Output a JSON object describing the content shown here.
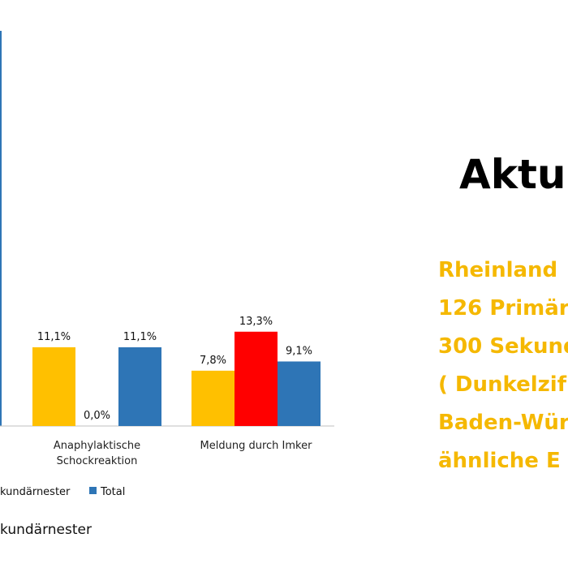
{
  "heading": "Aktu",
  "side_lines": [
    "Rheinland",
    "126 Primär",
    "300 Sekund",
    "( Dunkelzif",
    "Baden-Wür",
    "ähnliche E"
  ],
  "footnote": "kundärnester",
  "colors": {
    "primary": "#FFC000",
    "secondary": "#FF0000",
    "total": "#2E75B6",
    "accent_text": "#F5B800"
  },
  "chart_data": {
    "type": "bar",
    "categories": [
      [
        "Anaphylaktische",
        "Schockreaktion"
      ],
      [
        "Meldung durch Imker"
      ]
    ],
    "series": [
      {
        "name": "",
        "color": "#FFC000",
        "values": [
          11.1,
          7.8
        ],
        "labels": [
          "11,1%",
          "7,8%"
        ]
      },
      {
        "name": "kundärnester",
        "color": "#FF0000",
        "values": [
          0.0,
          13.3
        ],
        "labels": [
          "0,0%",
          "13,3%"
        ]
      },
      {
        "name": "Total",
        "color": "#2E75B6",
        "values": [
          11.1,
          9.1
        ],
        "labels": [
          "11,1%",
          "9,1%"
        ]
      }
    ],
    "legend_placement": "bottom",
    "grid": false
  }
}
